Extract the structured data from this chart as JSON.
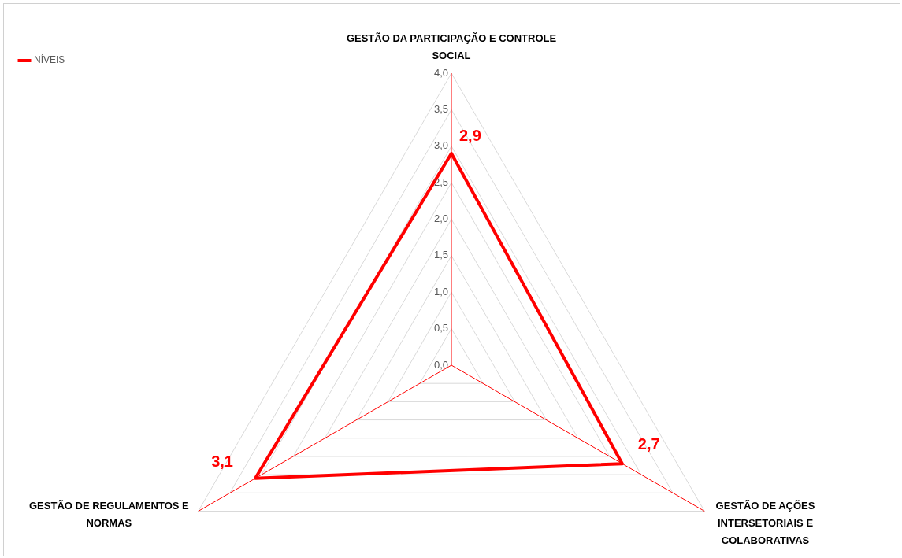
{
  "chart_data": {
    "type": "radar",
    "categories": [
      "GESTÃO DA PARTICIPAÇÃO E CONTROLE SOCIAL",
      "GESTÃO DE AÇÕES INTERSETORIAIS E COLABORATIVAS",
      "GESTÃO DE REGULAMENTOS E NORMAS"
    ],
    "series": [
      {
        "name": "NÍVEIS",
        "color": "#ff0000",
        "values": [
          2.9,
          2.7,
          3.1
        ],
        "value_labels": [
          "2,9",
          "2,7",
          "3,1"
        ]
      }
    ],
    "ylim": [
      0,
      4
    ],
    "yticks": [
      {
        "value": 0,
        "label": "0,0"
      },
      {
        "value": 0.5,
        "label": "0,5"
      },
      {
        "value": 1,
        "label": "1,0"
      },
      {
        "value": 1.5,
        "label": "1,5"
      },
      {
        "value": 2,
        "label": "2,0"
      },
      {
        "value": 2.5,
        "label": "2,5"
      },
      {
        "value": 3,
        "label": "3,0"
      },
      {
        "value": 3.5,
        "label": "3,5"
      },
      {
        "value": 4,
        "label": "4,0"
      }
    ],
    "grid": true,
    "legend": "top left",
    "marker": "none",
    "line_style": "solid"
  }
}
